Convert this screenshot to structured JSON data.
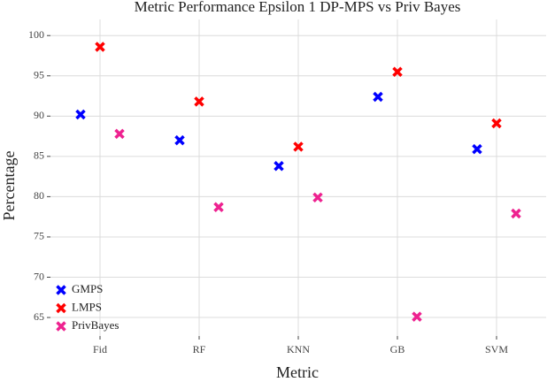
{
  "chart_data": {
    "type": "scatter",
    "title": "Metric Performance Epsilon 1 DP-MPS vs Priv Bayes",
    "x_label": "Metric",
    "y_label": "Percentage",
    "categories": [
      "Fid",
      "RF",
      "KNN",
      "GB",
      "SVM"
    ],
    "series": [
      {
        "name": "GMPS",
        "color": "#0000ff",
        "values": [
          90.2,
          87.0,
          83.8,
          92.4,
          85.9
        ]
      },
      {
        "name": "LMPS",
        "color": "#ff0000",
        "values": [
          98.6,
          91.8,
          86.2,
          95.5,
          89.1
        ]
      },
      {
        "name": "PrivBayes",
        "color": "#ee2290",
        "values": [
          87.8,
          78.7,
          79.9,
          65.1,
          77.9
        ]
      }
    ],
    "ylim": [
      62.7,
      102
    ],
    "yticks": [
      65,
      70,
      75,
      80,
      85,
      90,
      95,
      100
    ],
    "grid": true,
    "legend": "bottom-left"
  }
}
